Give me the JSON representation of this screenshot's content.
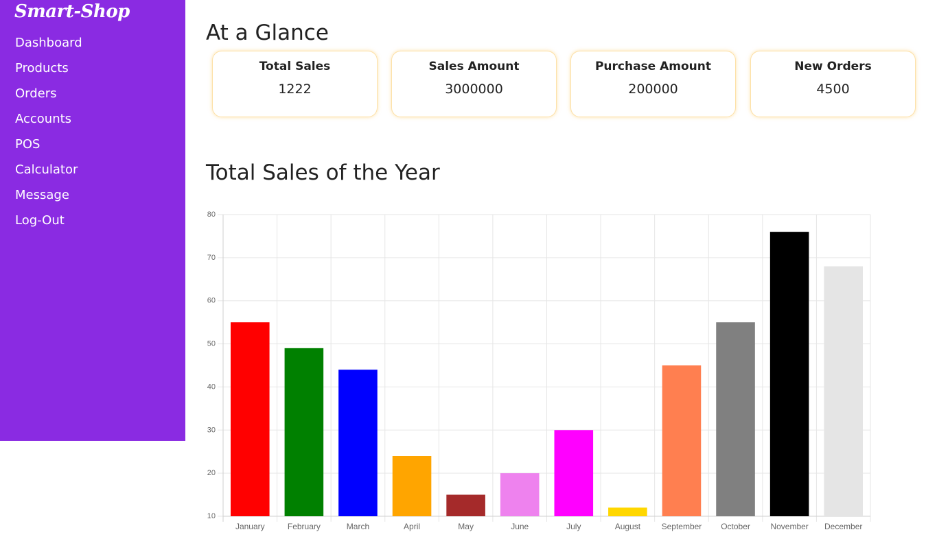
{
  "sidebar": {
    "brand": "Smart-Shop",
    "items": [
      {
        "label": "Dashboard"
      },
      {
        "label": "Products"
      },
      {
        "label": "Orders"
      },
      {
        "label": "Accounts"
      },
      {
        "label": "POS"
      },
      {
        "label": "Calculator"
      },
      {
        "label": "Message"
      },
      {
        "label": "Log-Out"
      }
    ]
  },
  "main": {
    "title": "At a Glance",
    "cards": [
      {
        "label": "Total Sales",
        "value": "1222"
      },
      {
        "label": "Sales Amount",
        "value": "3000000"
      },
      {
        "label": "Purchase Amount",
        "value": "200000"
      },
      {
        "label": "New Orders",
        "value": "4500"
      }
    ],
    "chart_title": "Total Sales of the Year"
  },
  "colors": {
    "sidebar_bg": "#8a2be2",
    "card_border": "#fde1a8"
  },
  "chart_data": {
    "type": "bar",
    "categories": [
      "January",
      "February",
      "March",
      "April",
      "May",
      "June",
      "July",
      "August",
      "September",
      "October",
      "November",
      "December"
    ],
    "values": [
      55,
      49,
      44,
      24,
      15,
      20,
      30,
      12,
      45,
      55,
      76,
      68
    ],
    "colors": [
      "#ff0000",
      "#008000",
      "#0000ff",
      "#ffa500",
      "#a52a2a",
      "#ee82ee",
      "#ff00ff",
      "#ffd700",
      "#ff7f50",
      "#808080",
      "#000000",
      "#e5e5e5"
    ],
    "title": "Total Sales of the Year",
    "ylim": [
      10,
      80
    ],
    "yticks": [
      10,
      20,
      30,
      40,
      50,
      60,
      70,
      80
    ],
    "grid": true,
    "legend": "none"
  }
}
